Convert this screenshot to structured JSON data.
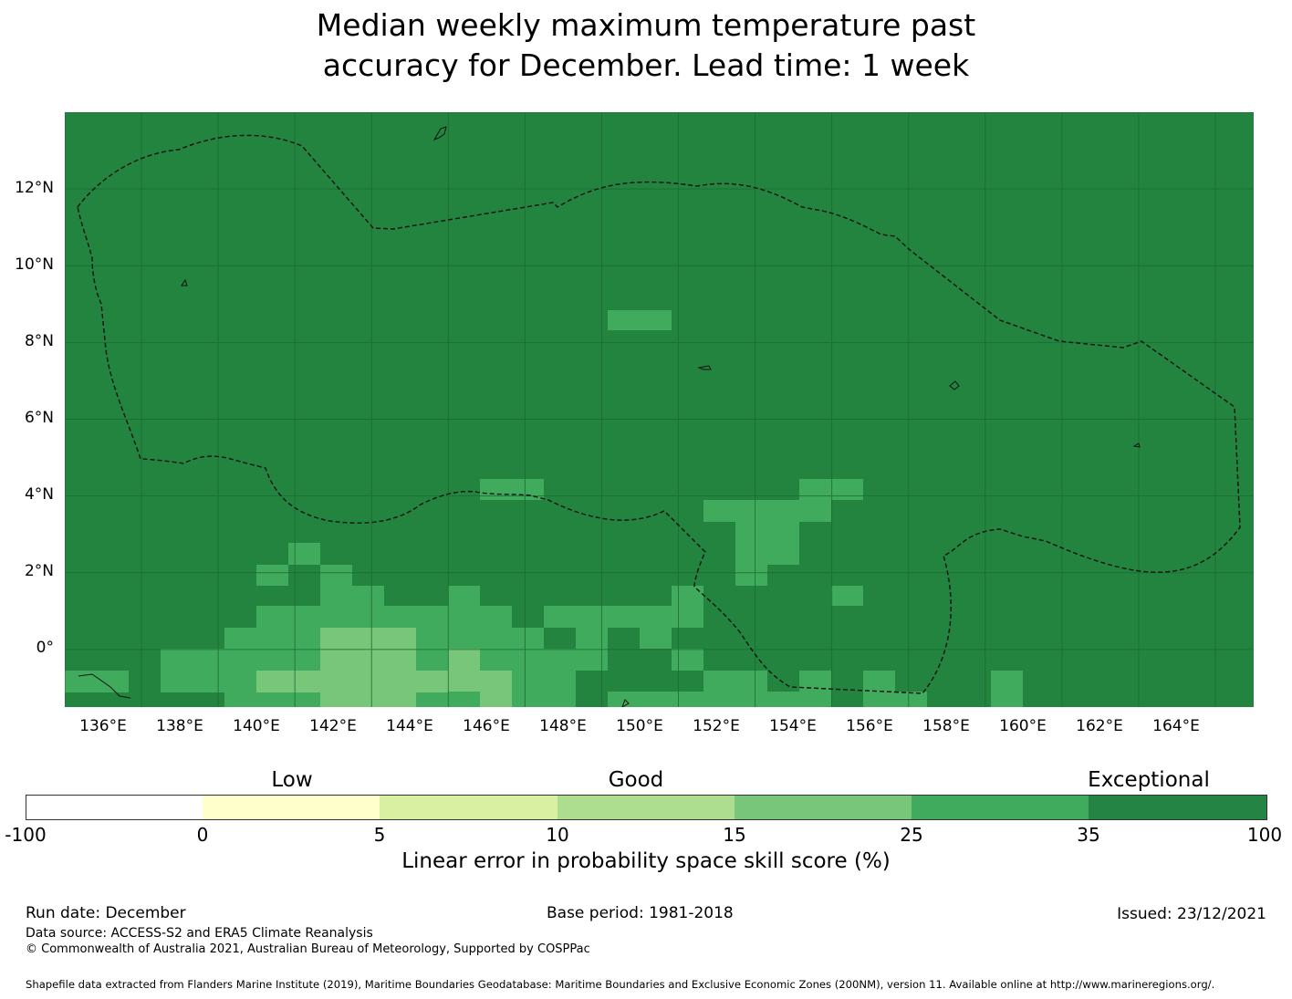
{
  "title": {
    "line1": "Median weekly maximum temperature past",
    "line2": "accuracy for December. Lead time: 1 week"
  },
  "map": {
    "background_color": "#23843f",
    "lat_labels": [
      "12°N",
      "10°N",
      "8°N",
      "6°N",
      "4°N",
      "2°N",
      "0°"
    ],
    "lon_labels": [
      "136°E",
      "138°E",
      "140°E",
      "142°E",
      "144°E",
      "146°E",
      "148°E",
      "150°E",
      "152°E",
      "154°E",
      "156°E",
      "158°E",
      "160°E",
      "162°E",
      "164°E"
    ],
    "lat_range": [
      -1.5,
      14.0
    ],
    "lon_range": [
      134.0,
      165.0
    ]
  },
  "colorbar": {
    "categories": [
      "Low",
      "Good",
      "Exceptional"
    ],
    "ticks": [
      "-100",
      "0",
      "5",
      "10",
      "15",
      "25",
      "35",
      "100"
    ],
    "colors": [
      "#ffffff",
      "#ffffcc",
      "#d9f0a3",
      "#addd8e",
      "#78c679",
      "#41ab5d",
      "#238443"
    ],
    "label": "Linear error in probability space skill score (%)"
  },
  "footer": {
    "run_date": "Run date: December",
    "base_period": "Base period: 1981-2018",
    "issued": "Issued: 23/12/2021",
    "data_source": "Data source: ACCESS-S2 and ERA5 Climate Reanalysis",
    "copyright": "© Commonwealth of Australia 2021, Australian Bureau of Meteorology, Supported by COSPPac",
    "shapefile": "Shapefile data extracted from Flanders Marine Institute (2019), Maritime Boundaries Geodatabase: Maritime Boundaries and Exclusive Economic Zones (200NM), version 11. Available online at http://www.marineregions.org/."
  }
}
